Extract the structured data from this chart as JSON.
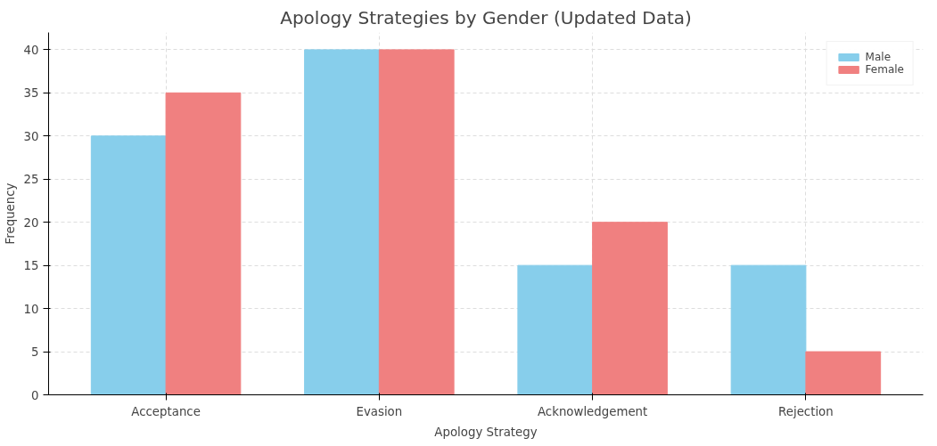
{
  "chart_data": {
    "type": "bar",
    "title": "Apology Strategies by Gender (Updated Data)",
    "xlabel": "Apology Strategy",
    "ylabel": "Frequency",
    "categories": [
      "Acceptance",
      "Evasion",
      "Acknowledgement",
      "Rejection"
    ],
    "series": [
      {
        "name": "Male",
        "color": "#87ceeb",
        "values": [
          30,
          40,
          15,
          15
        ]
      },
      {
        "name": "Female",
        "color": "#f08080",
        "values": [
          35,
          40,
          20,
          5
        ]
      }
    ],
    "ylim": [
      0,
      42
    ],
    "yticks": [
      0,
      5,
      10,
      15,
      20,
      25,
      30,
      35,
      40
    ],
    "grid": true,
    "legend": "top right"
  }
}
